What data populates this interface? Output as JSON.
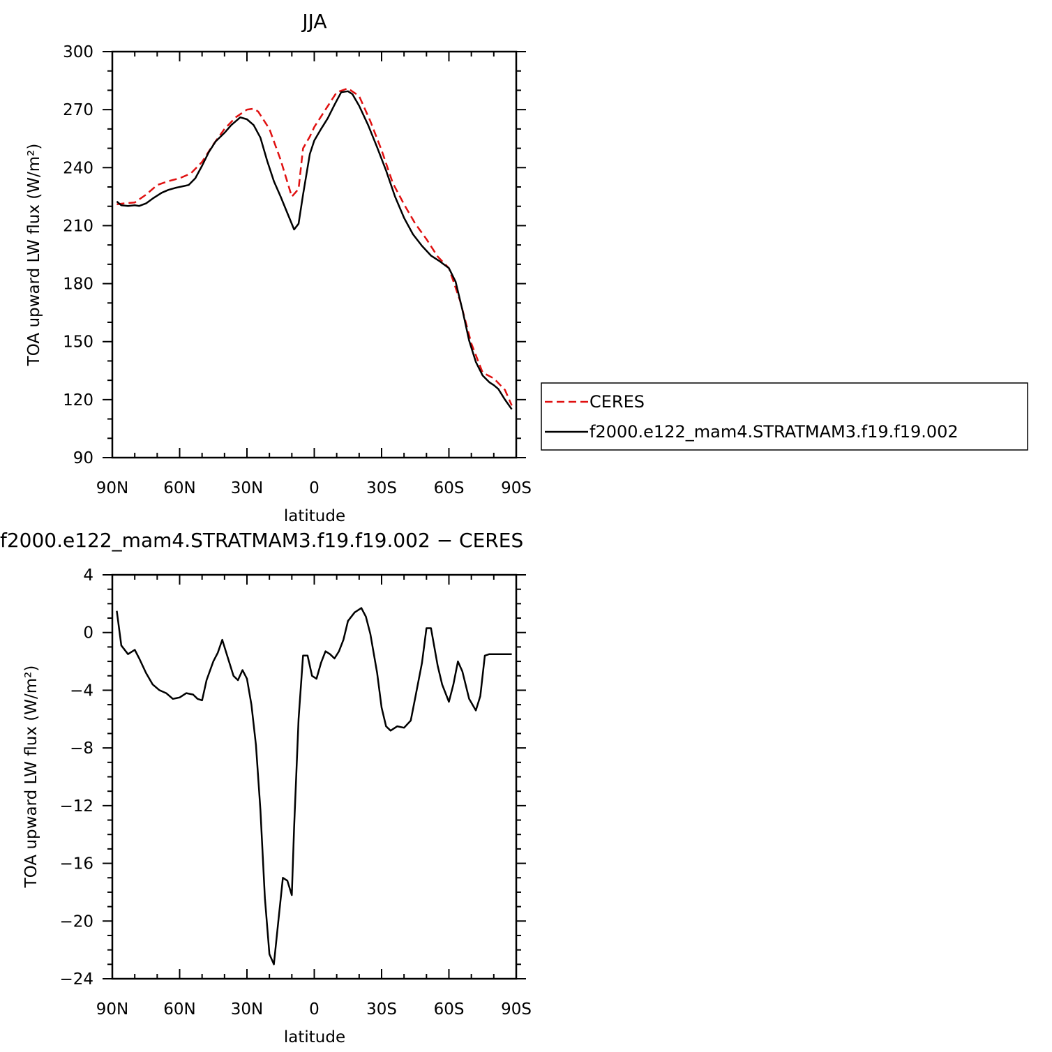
{
  "chart_data": [
    {
      "type": "line",
      "title": "JJA",
      "xlabel": "latitude",
      "ylabel": "TOA upward LW flux (W/m²)",
      "xlim": [
        90,
        -90
      ],
      "ylim": [
        90,
        300
      ],
      "xticks": [
        90,
        60,
        30,
        0,
        -30,
        -60,
        -90
      ],
      "xtick_labels": [
        "90N",
        "60N",
        "30N",
        "0",
        "30S",
        "60S",
        "90S"
      ],
      "yticks": [
        90,
        120,
        150,
        180,
        210,
        240,
        270,
        300
      ],
      "ytick_labels": [
        "90",
        "120",
        "150",
        "180",
        "210",
        "240",
        "270",
        "300"
      ],
      "grid": false,
      "legend_position": "right",
      "series": [
        {
          "name": "CERES",
          "color": "#e01010",
          "dash": "dashed",
          "x": [
            88,
            85,
            80,
            75,
            70,
            65,
            60,
            55,
            50,
            45,
            40,
            35,
            30,
            27,
            25,
            20,
            15,
            10,
            7,
            5,
            2,
            0,
            -5,
            -10,
            -15,
            -20,
            -25,
            -30,
            -35,
            -40,
            -45,
            -50,
            -55,
            -60,
            -65,
            -70,
            -75,
            -80,
            -85,
            -88
          ],
          "y": [
            221,
            221.5,
            222,
            226,
            231,
            233,
            234.5,
            237,
            243,
            252,
            260,
            266,
            270,
            270.5,
            269,
            260,
            244,
            225,
            229,
            250,
            256,
            261,
            270,
            279,
            281,
            277,
            264,
            249,
            232,
            221,
            211,
            203,
            194,
            188,
            171,
            149,
            134,
            131,
            125,
            117
          ]
        },
        {
          "name": "f2000.e122_mam4.STRATMAM3.f19.f19.002",
          "color": "#000000",
          "dash": "solid",
          "x": [
            88,
            86,
            83,
            80,
            78,
            75,
            72,
            68,
            65,
            62,
            58,
            56,
            53,
            50,
            47,
            44,
            40,
            37,
            33,
            30,
            27,
            24,
            21,
            18,
            15,
            12,
            9,
            7,
            5,
            2,
            0,
            -3,
            -6,
            -9,
            -12,
            -15,
            -17,
            -20,
            -24,
            -28,
            -32,
            -36,
            -40,
            -44,
            -48,
            -52,
            -56,
            -60,
            -63,
            -66,
            -69,
            -72,
            -75,
            -78,
            -80,
            -82,
            -85,
            -88
          ],
          "y": [
            222.5,
            220.5,
            220.2,
            220.5,
            220.2,
            221.5,
            224,
            227,
            228.5,
            229.5,
            230.5,
            231,
            234.5,
            241,
            248,
            253.5,
            258,
            262,
            266,
            265,
            262,
            255.5,
            243.5,
            233,
            225,
            216.5,
            208,
            211,
            226,
            247,
            254,
            260,
            265.5,
            272.5,
            279,
            279.5,
            278,
            272,
            262,
            250.5,
            238.5,
            225,
            214,
            205.5,
            199.5,
            194.5,
            191.5,
            188,
            181,
            166.5,
            150.5,
            139.5,
            132.5,
            129,
            127.5,
            125.5,
            120,
            115
          ]
        }
      ]
    },
    {
      "type": "line",
      "title": "f2000.e122_mam4.STRATMAM3.f19.f19.002 − CERES",
      "xlabel": "latitude",
      "ylabel": "TOA upward LW flux (W/m²)",
      "xlim": [
        90,
        -90
      ],
      "ylim": [
        -24,
        4
      ],
      "xticks": [
        90,
        60,
        30,
        0,
        -30,
        -60,
        -90
      ],
      "xtick_labels": [
        "90N",
        "60N",
        "30N",
        "0",
        "30S",
        "60S",
        "90S"
      ],
      "yticks": [
        -24,
        -20,
        -16,
        -12,
        -8,
        -4,
        0,
        4
      ],
      "ytick_labels": [
        "−24",
        "−20",
        "−16",
        "−12",
        "−8",
        "−4",
        "0",
        "4"
      ],
      "grid": false,
      "series": [
        {
          "color": "#000000",
          "dash": "solid",
          "x": [
            88,
            86,
            83,
            80,
            78,
            75,
            72,
            69,
            66,
            63,
            60,
            57,
            54,
            52,
            50,
            48,
            45,
            43,
            41,
            39,
            36,
            34,
            32,
            30,
            28,
            26,
            24,
            22,
            20,
            18,
            16,
            14,
            12,
            10,
            9,
            7,
            5,
            3,
            1,
            -1,
            -3,
            -5,
            -7,
            -9,
            -11,
            -13,
            -15,
            -18,
            -21,
            -23,
            -25,
            -28,
            -30,
            -32,
            -34,
            -37,
            -40,
            -43,
            -45,
            -48,
            -50,
            -52,
            -55,
            -57,
            -60,
            -62,
            -64,
            -66,
            -69,
            -72,
            -74,
            -76,
            -78,
            -80,
            -82,
            -85,
            -88
          ],
          "y": [
            1.5,
            -0.9,
            -1.5,
            -1.2,
            -1.8,
            -2.8,
            -3.6,
            -4.0,
            -4.2,
            -4.6,
            -4.5,
            -4.2,
            -4.3,
            -4.6,
            -4.7,
            -3.3,
            -2.0,
            -1.4,
            -0.5,
            -1.5,
            -3.0,
            -3.3,
            -2.6,
            -3.2,
            -5.0,
            -7.8,
            -12.3,
            -18.4,
            -22.3,
            -23.0,
            -20.0,
            -17.0,
            -17.2,
            -18.2,
            -13.5,
            -6.0,
            -1.6,
            -1.6,
            -3.0,
            -3.2,
            -2.1,
            -1.3,
            -1.5,
            -1.8,
            -1.3,
            -0.5,
            0.8,
            1.4,
            1.7,
            1.1,
            -0.1,
            -2.8,
            -5.2,
            -6.5,
            -6.8,
            -6.5,
            -6.6,
            -6.1,
            -4.5,
            -2.1,
            0.3,
            0.3,
            -2.3,
            -3.6,
            -4.8,
            -3.6,
            -2.0,
            -2.7,
            -4.6,
            -5.4,
            -4.4,
            -1.6,
            -1.5,
            -1.5,
            -1.5,
            -1.5,
            -1.5
          ]
        }
      ]
    }
  ]
}
